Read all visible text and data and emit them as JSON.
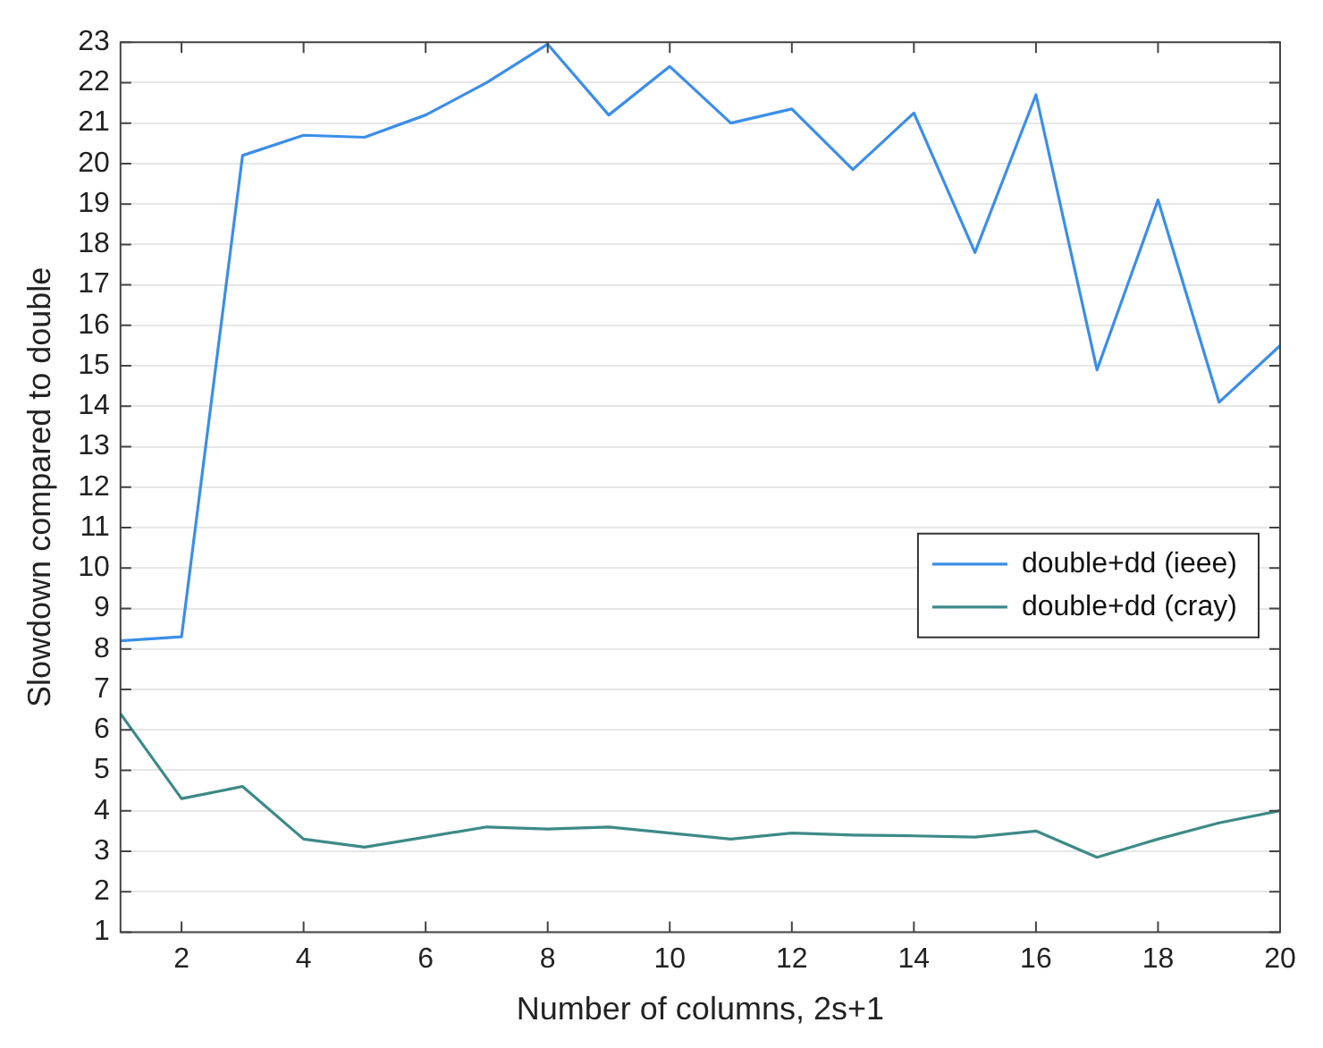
{
  "chart_data": {
    "type": "line",
    "xlabel": "Number of columns, 2s+1",
    "ylabel": "Slowdown compared to double",
    "x": [
      1,
      2,
      3,
      4,
      5,
      6,
      7,
      8,
      9,
      10,
      11,
      12,
      13,
      14,
      15,
      16,
      17,
      18,
      19,
      20
    ],
    "xlim": [
      1,
      20
    ],
    "xticks": [
      2,
      4,
      6,
      8,
      10,
      12,
      14,
      16,
      18,
      20
    ],
    "ylim": [
      1,
      23
    ],
    "yticks": [
      1,
      2,
      3,
      4,
      5,
      6,
      7,
      8,
      9,
      10,
      11,
      12,
      13,
      14,
      15,
      16,
      17,
      18,
      19,
      20,
      21,
      22,
      23
    ],
    "grid": "y",
    "legend": "right",
    "marker": "none",
    "line_style": "solid",
    "series": [
      {
        "name": "double+dd (ieee)",
        "color": "#3b8ee8",
        "values": [
          8.2,
          8.3,
          20.2,
          20.7,
          20.65,
          21.2,
          22.0,
          22.95,
          21.2,
          22.4,
          21.0,
          21.35,
          19.85,
          21.25,
          17.8,
          21.7,
          14.9,
          19.1,
          14.1,
          15.5
        ]
      },
      {
        "name": "double+dd (cray)",
        "color": "#3d8a87",
        "values": [
          6.4,
          4.3,
          4.6,
          3.3,
          3.1,
          3.35,
          3.6,
          3.55,
          3.6,
          3.45,
          3.3,
          3.45,
          3.4,
          3.38,
          3.35,
          3.5,
          2.85,
          3.3,
          3.7,
          4.0
        ]
      }
    ]
  }
}
